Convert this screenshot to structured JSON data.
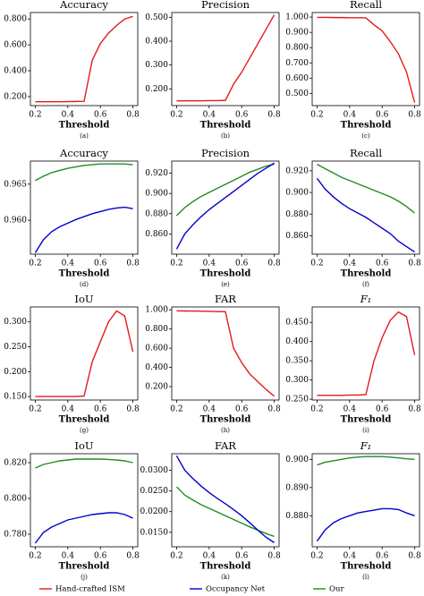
{
  "chart_data": [
    {
      "type": "line",
      "title": "Accuracy",
      "x_label": "Threshold",
      "sublabel": "(a)",
      "x": [
        0.2,
        0.25,
        0.3,
        0.35,
        0.4,
        0.45,
        0.5,
        0.55,
        0.6,
        0.65,
        0.7,
        0.75,
        0.8
      ],
      "series": [
        {
          "color": "#e41a1c",
          "values": [
            0.16,
            0.16,
            0.16,
            0.16,
            0.161,
            0.162,
            0.163,
            0.48,
            0.61,
            0.69,
            0.75,
            0.8,
            0.82
          ]
        }
      ],
      "xlim": [
        0.17,
        0.83
      ],
      "ylim": [
        0.13,
        0.85
      ],
      "xticks": [
        0.2,
        0.4,
        0.6,
        0.8
      ],
      "yticks": [
        {
          "value": 0.2,
          "label": "0.200"
        },
        {
          "value": 0.4,
          "label": "0.400"
        },
        {
          "value": 0.6,
          "label": "0.600"
        },
        {
          "value": 0.8,
          "label": "0.800"
        }
      ]
    },
    {
      "type": "line",
      "title": "Precision",
      "x_label": "Threshold",
      "sublabel": "(b)",
      "x": [
        0.2,
        0.25,
        0.3,
        0.35,
        0.4,
        0.45,
        0.5,
        0.55,
        0.6,
        0.65,
        0.7,
        0.75,
        0.8
      ],
      "series": [
        {
          "color": "#e41a1c",
          "values": [
            0.15,
            0.15,
            0.15,
            0.15,
            0.151,
            0.151,
            0.152,
            0.22,
            0.27,
            0.33,
            0.39,
            0.45,
            0.51
          ]
        }
      ],
      "xlim": [
        0.17,
        0.83
      ],
      "ylim": [
        0.13,
        0.52
      ],
      "xticks": [
        0.2,
        0.4,
        0.6,
        0.8
      ],
      "yticks": [
        {
          "value": 0.2,
          "label": "0.200"
        },
        {
          "value": 0.3,
          "label": "0.300"
        },
        {
          "value": 0.4,
          "label": "0.400"
        },
        {
          "value": 0.5,
          "label": "0.500"
        }
      ]
    },
    {
      "type": "line",
      "title": "Recall",
      "x_label": "Threshold",
      "sublabel": "(c)",
      "x": [
        0.2,
        0.25,
        0.3,
        0.35,
        0.4,
        0.45,
        0.5,
        0.55,
        0.6,
        0.65,
        0.7,
        0.75,
        0.8
      ],
      "series": [
        {
          "color": "#e41a1c",
          "values": [
            0.998,
            0.998,
            0.997,
            0.997,
            0.996,
            0.996,
            0.995,
            0.95,
            0.91,
            0.84,
            0.76,
            0.64,
            0.44
          ]
        }
      ],
      "xlim": [
        0.17,
        0.83
      ],
      "ylim": [
        0.42,
        1.03
      ],
      "xticks": [
        0.2,
        0.4,
        0.6,
        0.8
      ],
      "yticks": [
        {
          "value": 0.5,
          "label": "0.500"
        },
        {
          "value": 0.6,
          "label": "0.600"
        },
        {
          "value": 0.7,
          "label": "0.700"
        },
        {
          "value": 0.8,
          "label": "0.800"
        },
        {
          "value": 0.9,
          "label": "0.900"
        },
        {
          "value": 1.0,
          "label": "1.000"
        }
      ]
    },
    {
      "type": "line",
      "title": "Accuracy",
      "x_label": "Threshold",
      "sublabel": "(d)",
      "x": [
        0.2,
        0.25,
        0.3,
        0.35,
        0.4,
        0.45,
        0.5,
        0.55,
        0.6,
        0.65,
        0.7,
        0.75,
        0.8
      ],
      "series": [
        {
          "color": "#228b22",
          "values": [
            0.9655,
            0.9661,
            0.9666,
            0.9669,
            0.9672,
            0.9674,
            0.9676,
            0.9677,
            0.9678,
            0.9678,
            0.9678,
            0.9678,
            0.9677
          ]
        },
        {
          "color": "#0000cd",
          "values": [
            0.9555,
            0.9573,
            0.9584,
            0.9591,
            0.9596,
            0.9601,
            0.9605,
            0.9609,
            0.9612,
            0.9615,
            0.9617,
            0.9618,
            0.9616
          ]
        }
      ],
      "xlim": [
        0.17,
        0.83
      ],
      "ylim": [
        0.9553,
        0.9682
      ],
      "xticks": [
        0.2,
        0.4,
        0.6,
        0.8
      ],
      "yticks": [
        {
          "value": 0.96,
          "label": "0.960"
        },
        0.965
      ]
    },
    {
      "type": "line",
      "title": "Precision",
      "x_label": "Threshold",
      "sublabel": "(e)",
      "x": [
        0.2,
        0.25,
        0.3,
        0.35,
        0.4,
        0.45,
        0.5,
        0.55,
        0.6,
        0.65,
        0.7,
        0.75,
        0.8
      ],
      "series": [
        {
          "color": "#228b22",
          "values": [
            0.878,
            0.886,
            0.892,
            0.897,
            0.901,
            0.905,
            0.909,
            0.913,
            0.917,
            0.921,
            0.924,
            0.927,
            0.929
          ]
        },
        {
          "color": "#0000cd",
          "values": [
            0.845,
            0.86,
            0.869,
            0.877,
            0.884,
            0.89,
            0.896,
            0.902,
            0.908,
            0.914,
            0.92,
            0.925,
            0.93
          ]
        }
      ],
      "xlim": [
        0.17,
        0.83
      ],
      "ylim": [
        0.84,
        0.932
      ],
      "xticks": [
        0.2,
        0.4,
        0.6,
        0.8
      ],
      "yticks": [
        {
          "value": 0.86,
          "label": "0.860"
        },
        {
          "value": 0.88,
          "label": "0.880"
        },
        {
          "value": 0.9,
          "label": "0.900"
        },
        {
          "value": 0.92,
          "label": "0.920"
        }
      ]
    },
    {
      "type": "line",
      "title": "Recall",
      "x_label": "Threshold",
      "sublabel": "(f)",
      "x": [
        0.2,
        0.25,
        0.3,
        0.35,
        0.4,
        0.45,
        0.5,
        0.55,
        0.6,
        0.65,
        0.7,
        0.75,
        0.8
      ],
      "series": [
        {
          "color": "#228b22",
          "values": [
            0.926,
            0.922,
            0.918,
            0.914,
            0.911,
            0.908,
            0.905,
            0.902,
            0.899,
            0.896,
            0.892,
            0.887,
            0.881
          ]
        },
        {
          "color": "#0000cd",
          "values": [
            0.913,
            0.903,
            0.896,
            0.89,
            0.885,
            0.881,
            0.877,
            0.872,
            0.867,
            0.862,
            0.855,
            0.85,
            0.845
          ]
        }
      ],
      "xlim": [
        0.17,
        0.83
      ],
      "ylim": [
        0.843,
        0.929
      ],
      "xticks": [
        0.2,
        0.4,
        0.6,
        0.8
      ],
      "yticks": [
        {
          "value": 0.86,
          "label": "0.860"
        },
        {
          "value": 0.88,
          "label": "0.880"
        },
        {
          "value": 0.9,
          "label": "0.900"
        },
        {
          "value": 0.92,
          "label": "0.920"
        }
      ]
    },
    {
      "type": "line",
      "title": "IoU",
      "x_label": "Threshold",
      "sublabel": "(g)",
      "x": [
        0.2,
        0.25,
        0.3,
        0.35,
        0.4,
        0.45,
        0.5,
        0.55,
        0.6,
        0.65,
        0.7,
        0.75,
        0.8
      ],
      "series": [
        {
          "color": "#e41a1c",
          "values": [
            0.15,
            0.15,
            0.15,
            0.15,
            0.15,
            0.15,
            0.151,
            0.22,
            0.26,
            0.3,
            0.322,
            0.312,
            0.24
          ]
        }
      ],
      "xlim": [
        0.17,
        0.83
      ],
      "ylim": [
        0.143,
        0.33
      ],
      "xticks": [
        0.2,
        0.4,
        0.6,
        0.8
      ],
      "yticks": [
        {
          "value": 0.15,
          "label": "0.150"
        },
        {
          "value": 0.2,
          "label": "0.200"
        },
        {
          "value": 0.25,
          "label": "0.250"
        },
        {
          "value": 0.3,
          "label": "0.300"
        }
      ]
    },
    {
      "type": "line",
      "title": "FAR",
      "x_label": "Threshold",
      "sublabel": "(h)",
      "x": [
        0.2,
        0.25,
        0.3,
        0.35,
        0.4,
        0.45,
        0.5,
        0.55,
        0.6,
        0.65,
        0.7,
        0.75,
        0.8
      ],
      "series": [
        {
          "color": "#e41a1c",
          "values": [
            0.99,
            0.988,
            0.987,
            0.986,
            0.984,
            0.982,
            0.98,
            0.6,
            0.45,
            0.33,
            0.25,
            0.17,
            0.1
          ]
        }
      ],
      "xlim": [
        0.17,
        0.83
      ],
      "ylim": [
        0.06,
        1.03
      ],
      "xticks": [
        0.2,
        0.4,
        0.6,
        0.8
      ],
      "yticks": [
        {
          "value": 0.2,
          "label": "0.200"
        },
        {
          "value": 0.4,
          "label": "0.400"
        },
        {
          "value": 0.6,
          "label": "0.600"
        },
        {
          "value": 0.8,
          "label": "0.800"
        },
        {
          "value": 1.0,
          "label": "1.000"
        }
      ]
    },
    {
      "type": "line",
      "title": "F₁",
      "x_label": "Threshold",
      "sublabel": "(i)",
      "x": [
        0.2,
        0.25,
        0.3,
        0.35,
        0.4,
        0.45,
        0.5,
        0.55,
        0.6,
        0.65,
        0.7,
        0.75,
        0.8
      ],
      "series": [
        {
          "color": "#e41a1c",
          "values": [
            0.26,
            0.26,
            0.26,
            0.26,
            0.261,
            0.261,
            0.262,
            0.35,
            0.41,
            0.455,
            0.477,
            0.465,
            0.365
          ]
        }
      ],
      "xlim": [
        0.17,
        0.83
      ],
      "ylim": [
        0.248,
        0.49
      ],
      "xticks": [
        0.2,
        0.4,
        0.6,
        0.8
      ],
      "yticks": [
        {
          "value": 0.25,
          "label": "0.250"
        },
        {
          "value": 0.3,
          "label": "0.300"
        },
        {
          "value": 0.35,
          "label": "0.350"
        },
        {
          "value": 0.4,
          "label": "0.400"
        },
        {
          "value": 0.45,
          "label": "0.450"
        }
      ]
    },
    {
      "type": "line",
      "title": "IoU",
      "x_label": "Threshold",
      "sublabel": "(j)",
      "x": [
        0.2,
        0.25,
        0.3,
        0.35,
        0.4,
        0.45,
        0.5,
        0.55,
        0.6,
        0.65,
        0.7,
        0.75,
        0.8
      ],
      "series": [
        {
          "color": "#228b22",
          "values": [
            0.817,
            0.819,
            0.82,
            0.821,
            0.8215,
            0.822,
            0.822,
            0.822,
            0.822,
            0.8218,
            0.8215,
            0.821,
            0.82
          ]
        },
        {
          "color": "#0000cd",
          "values": [
            0.775,
            0.781,
            0.784,
            0.786,
            0.788,
            0.789,
            0.79,
            0.791,
            0.7915,
            0.792,
            0.792,
            0.791,
            0.789
          ]
        }
      ],
      "xlim": [
        0.17,
        0.83
      ],
      "ylim": [
        0.773,
        0.825
      ],
      "xticks": [
        0.2,
        0.4,
        0.6,
        0.8
      ],
      "yticks": [
        {
          "value": 0.78,
          "label": "0.780"
        },
        {
          "value": 0.8,
          "label": "0.800"
        },
        {
          "value": 0.82,
          "label": "0.820"
        }
      ]
    },
    {
      "type": "line",
      "title": "FAR",
      "x_label": "Threshold",
      "sublabel": "(k)",
      "x": [
        0.2,
        0.25,
        0.3,
        0.35,
        0.4,
        0.45,
        0.5,
        0.55,
        0.6,
        0.65,
        0.7,
        0.75,
        0.8
      ],
      "series": [
        {
          "color": "#228b22",
          "values": [
            0.026,
            0.024,
            0.0228,
            0.0217,
            0.0208,
            0.0199,
            0.019,
            0.0181,
            0.0172,
            0.0163,
            0.0155,
            0.0147,
            0.014
          ]
        },
        {
          "color": "#0000cd",
          "values": [
            0.0335,
            0.03,
            0.028,
            0.0262,
            0.0246,
            0.0232,
            0.0219,
            0.0205,
            0.019,
            0.0173,
            0.0155,
            0.0138,
            0.0125
          ]
        }
      ],
      "xlim": [
        0.17,
        0.83
      ],
      "ylim": [
        0.0115,
        0.034
      ],
      "xticks": [
        0.2,
        0.4,
        0.6,
        0.8
      ],
      "yticks": [
        {
          "value": 0.015,
          "label": "0.0150"
        },
        {
          "value": 0.02,
          "label": "0.0200"
        },
        {
          "value": 0.025,
          "label": "0.0250"
        },
        {
          "value": 0.03,
          "label": "0.0300"
        }
      ]
    },
    {
      "type": "line",
      "title": "F₁",
      "x_label": "Threshold",
      "sublabel": "(l)",
      "x": [
        0.2,
        0.25,
        0.3,
        0.35,
        0.4,
        0.45,
        0.5,
        0.55,
        0.6,
        0.65,
        0.7,
        0.75,
        0.8
      ],
      "series": [
        {
          "color": "#228b22",
          "values": [
            0.898,
            0.899,
            0.8995,
            0.9,
            0.9005,
            0.9008,
            0.901,
            0.901,
            0.901,
            0.9008,
            0.9005,
            0.9002,
            0.9
          ]
        },
        {
          "color": "#0000cd",
          "values": [
            0.871,
            0.875,
            0.8775,
            0.879,
            0.88,
            0.881,
            0.8815,
            0.882,
            0.8825,
            0.8825,
            0.8822,
            0.881,
            0.88
          ]
        }
      ],
      "xlim": [
        0.17,
        0.83
      ],
      "ylim": [
        0.869,
        0.902
      ],
      "xticks": [
        0.2,
        0.4,
        0.6,
        0.8
      ],
      "yticks": [
        {
          "value": 0.88,
          "label": "0.880"
        },
        {
          "value": 0.89,
          "label": "0.890"
        },
        {
          "value": 0.9,
          "label": "0.900"
        }
      ]
    }
  ],
  "legend": [
    {
      "name": "Hand-crafted ISM",
      "color": "#e41a1c"
    },
    {
      "name": "Occupancy Net",
      "color": "#0000cd"
    },
    {
      "name": "Our",
      "color": "#228b22"
    }
  ]
}
